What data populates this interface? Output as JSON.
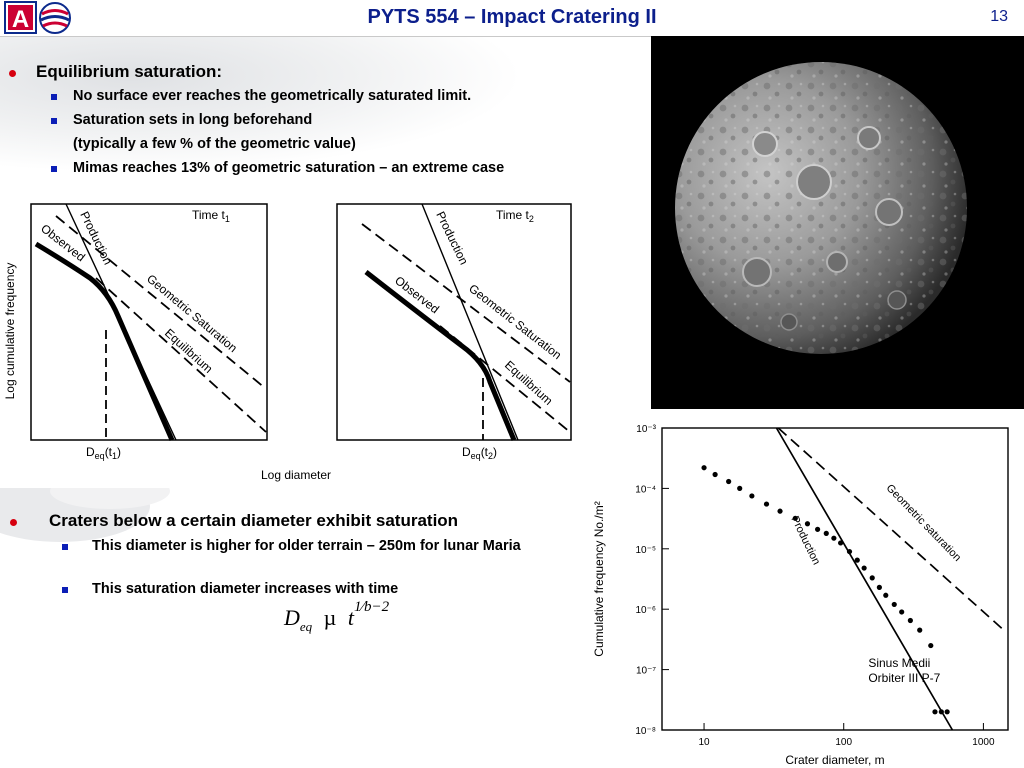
{
  "header": {
    "title": "PYTS 554 – Impact Cratering II",
    "page_number": "13",
    "logo_letter": "A"
  },
  "section1": {
    "heading": "Equilibrium saturation:",
    "items": [
      "No surface ever reaches the geometrically saturated limit.",
      "Saturation sets in long beforehand",
      "(typically a few % of the geometric value)",
      "Mimas reaches 13% of geometric saturation – an extreme case"
    ]
  },
  "section2": {
    "heading": "Craters below a certain diameter exhibit saturation",
    "items": [
      "This diameter is higher for older terrain – 250m for lunar Maria",
      "This saturation diameter increases with time"
    ]
  },
  "equation": {
    "lhs": "D",
    "lhs_sub": "eq",
    "relation": "µ",
    "base": "t",
    "exp_num": "1",
    "exp_den": "b−2"
  },
  "schematic": {
    "ylabel": "Log cumulative frequency",
    "xlabel": "Log diameter",
    "panels": [
      {
        "time_label": "Time t",
        "time_sub": "1",
        "deq_label": "D",
        "deq_sub": "eq",
        "deq_arg": "(t",
        "deq_argsub": "1",
        "deq_close": ")"
      },
      {
        "time_label": "Time t",
        "time_sub": "2",
        "deq_label": "D",
        "deq_sub": "eq",
        "deq_arg": "(t",
        "deq_argsub": "2",
        "deq_close": ")"
      }
    ],
    "curve_labels": {
      "production": "Production",
      "observed": "Observed",
      "geometric": "Geometric Saturation",
      "equilibrium": "Equilibrium"
    }
  },
  "chart_data": {
    "type": "scatter",
    "xlabel": "Crater diameter, m",
    "ylabel": "Cumulative frequency No./m²",
    "xscale": "log",
    "yscale": "log",
    "xlim": [
      5,
      1500
    ],
    "ylim": [
      1e-08,
      0.001
    ],
    "x_ticks": [
      10,
      100,
      1000
    ],
    "y_ticks": [
      "10⁻³",
      "10⁻⁴",
      "10⁻⁵",
      "10⁻⁶",
      "10⁻⁷",
      "10⁻⁸"
    ],
    "x_tick_labels": [
      "10",
      "100",
      "1000"
    ],
    "annotation": [
      "Sinus Medii",
      "Orbiter III P-7"
    ],
    "lines": [
      {
        "name": "Production",
        "style": "solid",
        "points": [
          [
            33,
            0.001
          ],
          [
            600,
            1e-08
          ]
        ]
      },
      {
        "name": "Geometric saturation",
        "style": "dashed",
        "points": [
          [
            34,
            0.001
          ],
          [
            1400,
            4.5e-07
          ]
        ]
      }
    ],
    "series": [
      {
        "name": "Sinus Medii",
        "points": [
          [
            10,
            0.00022
          ],
          [
            12,
            0.00017
          ],
          [
            15,
            0.00013
          ],
          [
            18,
            0.0001
          ],
          [
            22,
            7.5e-05
          ],
          [
            28,
            5.5e-05
          ],
          [
            35,
            4.2e-05
          ],
          [
            45,
            3.2e-05
          ],
          [
            55,
            2.6e-05
          ],
          [
            65,
            2.1e-05
          ],
          [
            75,
            1.8e-05
          ],
          [
            85,
            1.5e-05
          ],
          [
            95,
            1.25e-05
          ],
          [
            110,
            9e-06
          ],
          [
            125,
            6.5e-06
          ],
          [
            140,
            4.8e-06
          ],
          [
            160,
            3.3e-06
          ],
          [
            180,
            2.3e-06
          ],
          [
            200,
            1.7e-06
          ],
          [
            230,
            1.2e-06
          ],
          [
            260,
            9e-07
          ],
          [
            300,
            6.5e-07
          ],
          [
            350,
            4.5e-07
          ],
          [
            420,
            2.5e-07
          ],
          [
            450,
            2e-08
          ],
          [
            500,
            2e-08
          ],
          [
            550,
            2e-08
          ]
        ]
      }
    ]
  },
  "colors": {
    "title": "#0c1f8c",
    "level1_bullet": "#d6000f",
    "level2_bullet": "#0b1eb6"
  }
}
